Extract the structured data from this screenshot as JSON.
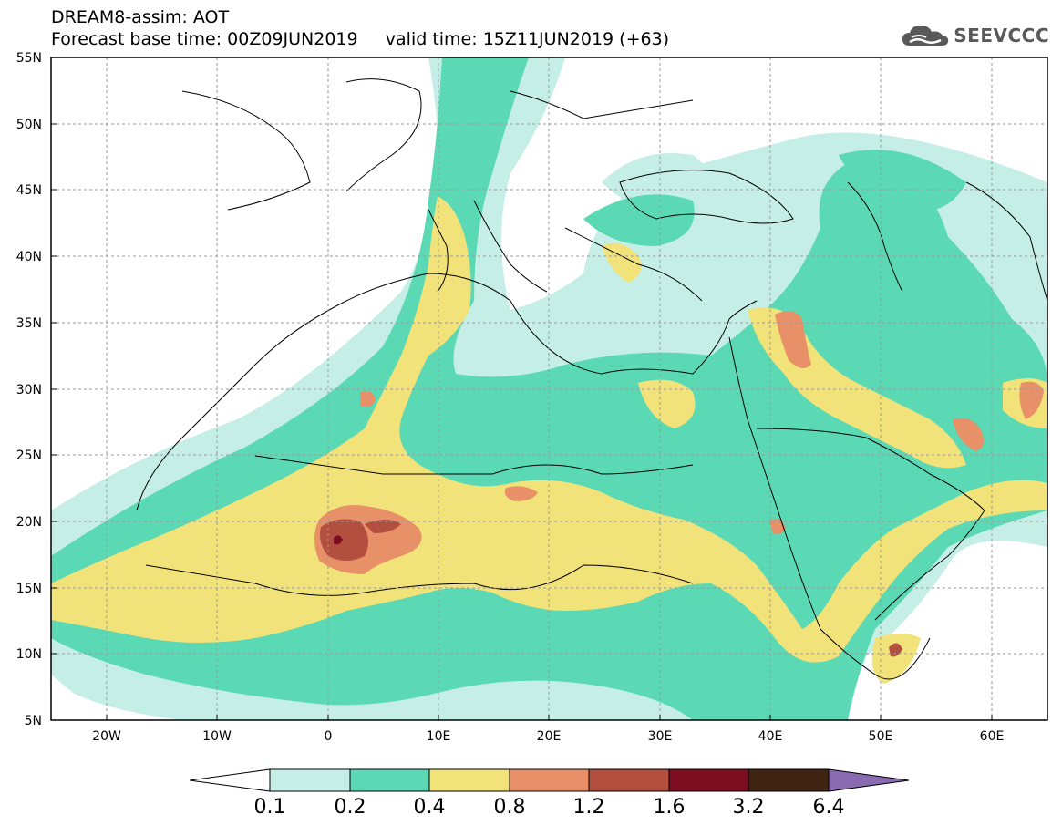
{
  "title": {
    "line1": "DREAM8-assim: AOT",
    "line2": "Forecast base time: 00Z09JUN2019     valid time: 15Z11JUN2019 (+63)"
  },
  "logo": {
    "text": "SEEVCCC",
    "icon": "cloud-icon"
  },
  "map": {
    "projection": "lat-lon",
    "lon_range": [
      -25,
      65
    ],
    "lat_range": [
      5,
      55
    ],
    "lat_ticks": [
      "55N",
      "50N",
      "45N",
      "40N",
      "35N",
      "30N",
      "25N",
      "20N",
      "15N",
      "10N",
      "5N"
    ],
    "lon_ticks": [
      "20W",
      "10W",
      "0",
      "10E",
      "20E",
      "30E",
      "40E",
      "50E",
      "60E"
    ],
    "grid": true
  },
  "colorbar": {
    "labels": [
      "0.1",
      "0.2",
      "0.4",
      "0.8",
      "1.2",
      "1.6",
      "3.2",
      "6.4"
    ],
    "colors": [
      "#ffffff",
      "#c5efe6",
      "#5ad9b4",
      "#f2e27a",
      "#e89068",
      "#b24f3f",
      "#7d0e22",
      "#3f2413",
      "#8a6ab0"
    ]
  }
}
